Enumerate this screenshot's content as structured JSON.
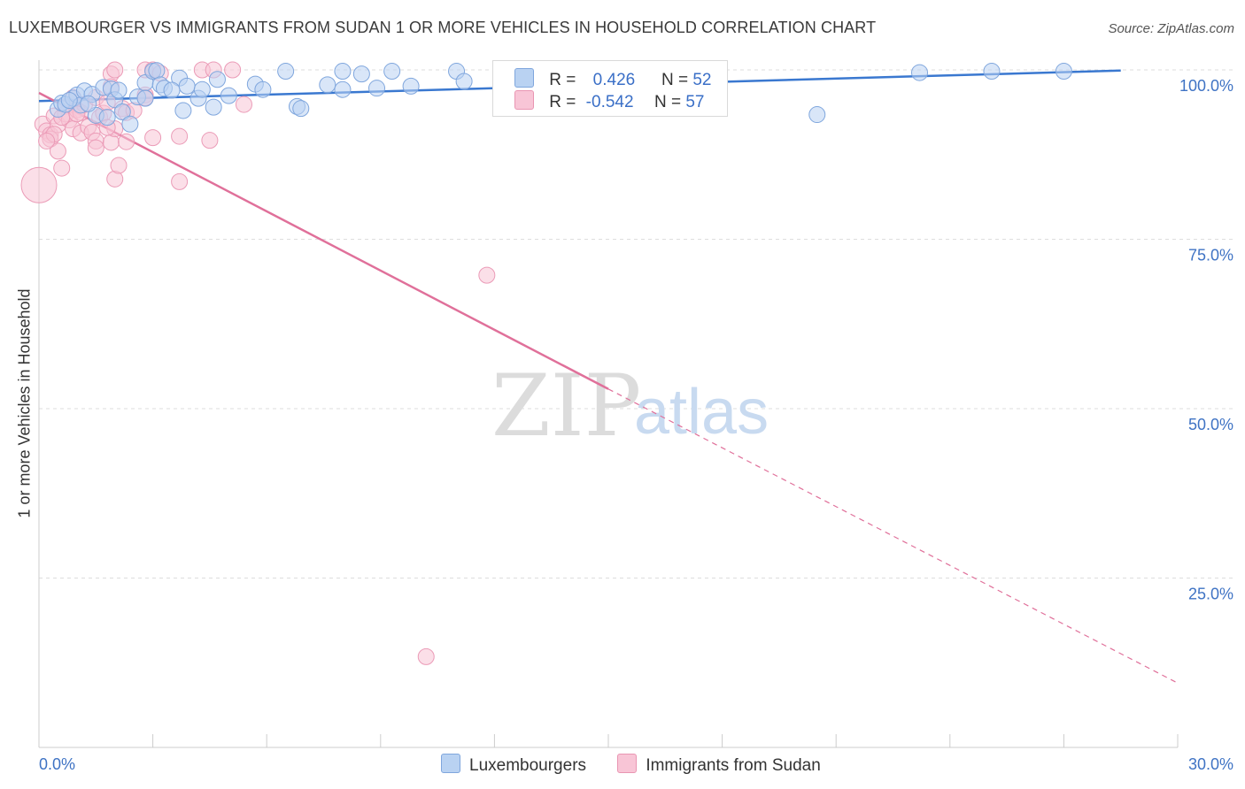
{
  "title": "LUXEMBOURGER VS IMMIGRANTS FROM SUDAN 1 OR MORE VEHICLES IN HOUSEHOLD CORRELATION CHART",
  "source": "Source: ZipAtlas.com",
  "watermark": {
    "zip": "ZIP",
    "atlas": "atlas"
  },
  "legend": {
    "r_label": "R =",
    "n_label": "N =",
    "rows": [
      {
        "r": "0.426",
        "n": "52",
        "color": "#aac8f0",
        "border": "#7fa6dd"
      },
      {
        "r": "-0.542",
        "n": "57",
        "color": "#f7bdd0",
        "border": "#e995b2"
      }
    ]
  },
  "bottom_legend": [
    "Luxembourgers",
    "Immigrants from Sudan"
  ],
  "colors": {
    "blue": "#3a78d0",
    "blue_fill": "#b9d2f2",
    "pink": "#e0709a",
    "pink_fill": "#f8c5d6",
    "tick_text": "#3f73c4",
    "grid": "#dddddd"
  },
  "chart_data": {
    "type": "scatter",
    "title": "LUXEMBOURGER VS IMMIGRANTS FROM SUDAN 1 OR MORE VEHICLES IN HOUSEHOLD CORRELATION CHART",
    "xlabel": "",
    "ylabel": "1 or more Vehicles in Household",
    "xlim": [
      0,
      30
    ],
    "ylim": [
      0,
      100
    ],
    "x_tick_labels": [
      "0.0%",
      "30.0%"
    ],
    "y_tick_labels": [
      "100.0%",
      "75.0%",
      "50.0%",
      "25.0%"
    ],
    "y_ticks": [
      100,
      75,
      50,
      25
    ],
    "grid": true,
    "legend_placement": "top-center",
    "series": [
      {
        "name": "Luxembourgers",
        "r": 0.426,
        "n": 52,
        "trend": {
          "x": [
            0,
            28.5
          ],
          "y": [
            95.4,
            99.9
          ]
        },
        "points": [
          [
            0.5,
            94.2
          ],
          [
            0.6,
            95.1
          ],
          [
            0.7,
            94.9
          ],
          [
            0.9,
            95.8
          ],
          [
            1.0,
            96.3
          ],
          [
            1.1,
            94.8
          ],
          [
            1.2,
            96.9
          ],
          [
            1.4,
            96.4
          ],
          [
            1.5,
            93.3
          ],
          [
            1.7,
            97.4
          ],
          [
            1.9,
            97.2
          ],
          [
            2.0,
            95.6
          ],
          [
            2.2,
            93.8
          ],
          [
            2.4,
            92.0
          ],
          [
            2.6,
            96.0
          ],
          [
            2.8,
            98.1
          ],
          [
            2.8,
            95.8
          ],
          [
            3.0,
            99.8
          ],
          [
            3.1,
            99.9
          ],
          [
            3.2,
            97.8
          ],
          [
            3.3,
            97.3
          ],
          [
            3.7,
            98.8
          ],
          [
            3.8,
            94.0
          ],
          [
            3.9,
            97.6
          ],
          [
            4.2,
            95.8
          ],
          [
            4.3,
            97.1
          ],
          [
            4.6,
            94.5
          ],
          [
            4.7,
            98.6
          ],
          [
            5.0,
            96.2
          ],
          [
            5.7,
            97.9
          ],
          [
            5.9,
            97.1
          ],
          [
            6.5,
            99.8
          ],
          [
            6.8,
            94.6
          ],
          [
            6.9,
            94.3
          ],
          [
            7.6,
            97.8
          ],
          [
            8.0,
            97.1
          ],
          [
            8.0,
            99.8
          ],
          [
            8.5,
            99.4
          ],
          [
            8.9,
            97.3
          ],
          [
            9.3,
            99.8
          ],
          [
            9.8,
            97.6
          ],
          [
            11.0,
            99.8
          ],
          [
            11.2,
            98.3
          ],
          [
            20.5,
            93.4
          ],
          [
            23.2,
            99.6
          ],
          [
            25.1,
            99.8
          ],
          [
            27.0,
            99.8
          ],
          [
            1.8,
            93.0
          ],
          [
            2.1,
            97.0
          ],
          [
            0.8,
            95.5
          ],
          [
            1.3,
            95.0
          ],
          [
            3.5,
            97.0
          ]
        ]
      },
      {
        "name": "Immigrants from Sudan",
        "r": -0.542,
        "n": 57,
        "trend": {
          "x": [
            0,
            15
          ],
          "y": [
            96.6,
            52.9
          ]
        },
        "trend_dashed": {
          "x": [
            15,
            30
          ],
          "y": [
            52.9,
            9.5
          ]
        },
        "points": [
          [
            0.0,
            83.0
          ],
          [
            0.1,
            92.0
          ],
          [
            0.2,
            91.0
          ],
          [
            0.3,
            90.4
          ],
          [
            0.3,
            89.8
          ],
          [
            0.4,
            93.2
          ],
          [
            0.5,
            91.9
          ],
          [
            0.5,
            88.0
          ],
          [
            0.6,
            85.5
          ],
          [
            0.7,
            94.6
          ],
          [
            0.7,
            93.5
          ],
          [
            0.8,
            92.6
          ],
          [
            0.9,
            95.9
          ],
          [
            0.9,
            91.3
          ],
          [
            1.0,
            94.1
          ],
          [
            1.1,
            93.7
          ],
          [
            1.1,
            90.7
          ],
          [
            1.2,
            94.9
          ],
          [
            1.3,
            91.6
          ],
          [
            1.4,
            90.8
          ],
          [
            1.5,
            95.9
          ],
          [
            1.6,
            93.0
          ],
          [
            1.5,
            89.5
          ],
          [
            1.5,
            88.5
          ],
          [
            1.7,
            93.6
          ],
          [
            1.8,
            95.2
          ],
          [
            1.9,
            89.3
          ],
          [
            1.9,
            99.4
          ],
          [
            2.0,
            91.3
          ],
          [
            1.9,
            97.5
          ],
          [
            2.0,
            83.9
          ],
          [
            2.0,
            100.0
          ],
          [
            2.1,
            85.9
          ],
          [
            2.2,
            94.3
          ],
          [
            2.3,
            93.7
          ],
          [
            2.3,
            89.4
          ],
          [
            2.8,
            100.0
          ],
          [
            2.8,
            96.3
          ],
          [
            2.8,
            95.9
          ],
          [
            3.0,
            100.0
          ],
          [
            3.0,
            90.0
          ],
          [
            3.7,
            83.5
          ],
          [
            3.7,
            90.2
          ],
          [
            4.3,
            100.0
          ],
          [
            4.5,
            89.6
          ],
          [
            4.6,
            100.0
          ],
          [
            5.1,
            100.0
          ],
          [
            5.4,
            94.9
          ],
          [
            11.8,
            69.7
          ],
          [
            10.2,
            13.4
          ],
          [
            0.6,
            93.0
          ],
          [
            1.0,
            93.5
          ],
          [
            0.4,
            90.5
          ],
          [
            2.5,
            94.0
          ],
          [
            1.8,
            91.5
          ],
          [
            0.2,
            89.5
          ],
          [
            3.2,
            99.5
          ]
        ]
      }
    ]
  }
}
